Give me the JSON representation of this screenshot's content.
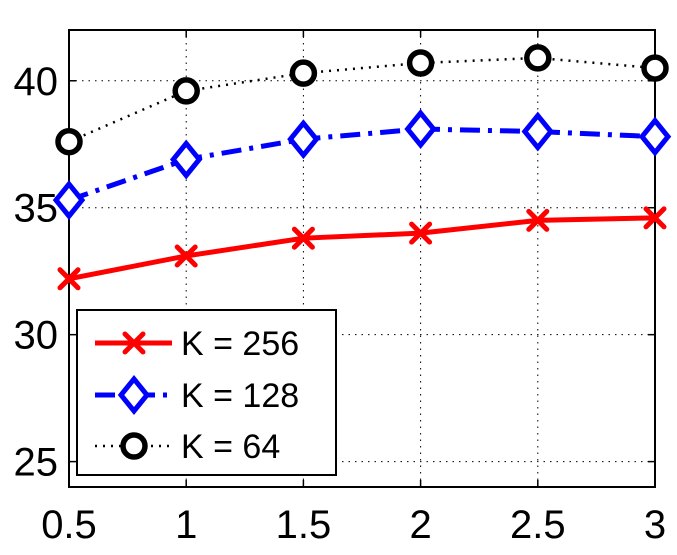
{
  "chart_data": {
    "type": "line",
    "title": "",
    "xlabel": "",
    "ylabel": "",
    "x": [
      0.5,
      1,
      1.5,
      2,
      2.5,
      3
    ],
    "xlim": [
      0.5,
      3
    ],
    "ylim": [
      24,
      42
    ],
    "xticks": [
      "0.5",
      "1",
      "1.5",
      "2",
      "2.5",
      "3"
    ],
    "yticks": [
      "25",
      "30",
      "35",
      "40"
    ],
    "grid": true,
    "legend_position": "bottom-left",
    "series": [
      {
        "name": "K = 256",
        "color": "#ff0000",
        "line": "solid",
        "marker": "x",
        "values": [
          32.2,
          33.1,
          33.8,
          34.0,
          34.5,
          34.6
        ]
      },
      {
        "name": "K = 128",
        "color": "#0000ff",
        "line": "dashdot",
        "marker": "diamond",
        "values": [
          35.3,
          36.9,
          37.7,
          38.1,
          38.0,
          37.8
        ]
      },
      {
        "name": "K = 64",
        "color": "#000000",
        "line": "dotted",
        "marker": "circle",
        "values": [
          37.6,
          39.6,
          40.3,
          40.7,
          40.9,
          40.5
        ]
      }
    ]
  }
}
